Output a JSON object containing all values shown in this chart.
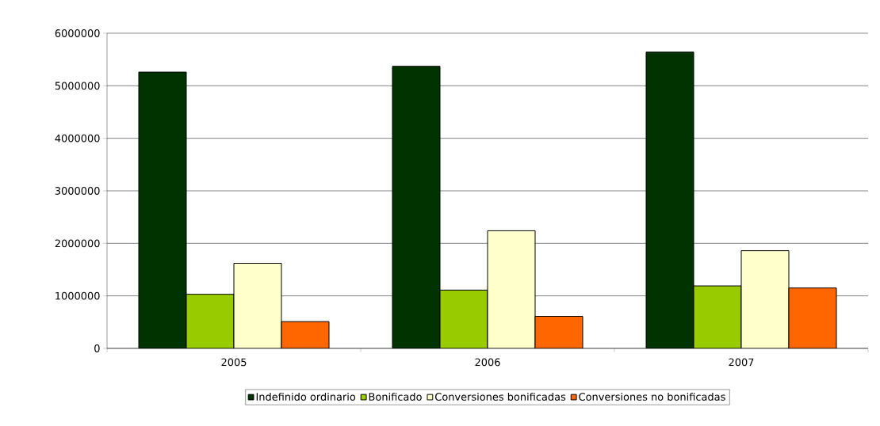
{
  "chart_data": {
    "type": "bar",
    "categories": [
      "2005",
      "2006",
      "2007"
    ],
    "series": [
      {
        "name": "Indefinido ordinario",
        "color": "#003300",
        "values": [
          5260000,
          5370000,
          5640000
        ]
      },
      {
        "name": "Bonificado",
        "color": "#99cc00",
        "values": [
          1030000,
          1110000,
          1190000
        ]
      },
      {
        "name": "Conversiones bonificadas",
        "color": "#ffffcc",
        "values": [
          1620000,
          2240000,
          1860000
        ]
      },
      {
        "name": "Conversiones no bonificadas",
        "color": "#ff6600",
        "values": [
          510000,
          610000,
          1150000
        ]
      }
    ],
    "ylim": [
      0,
      6000000
    ],
    "yticks": [
      0,
      1000000,
      2000000,
      3000000,
      4000000,
      5000000,
      6000000
    ],
    "grid": "y",
    "legend": "bottom"
  }
}
